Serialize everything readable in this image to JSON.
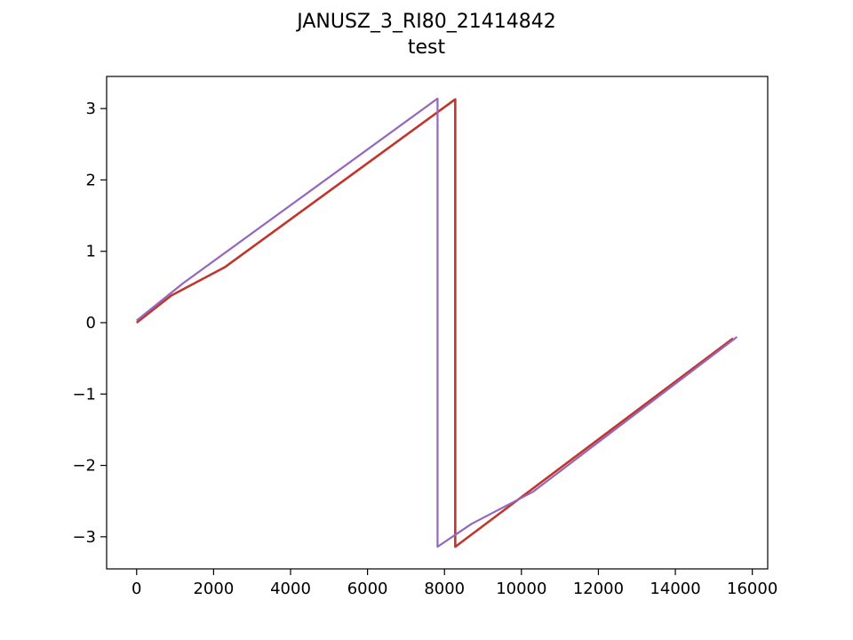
{
  "chart_data": {
    "type": "line",
    "title": "JANUSZ_3_RI80_21414842",
    "subtitle": "test",
    "xlabel": "",
    "ylabel": "",
    "xlim": [
      -780,
      16400
    ],
    "ylim": [
      -3.45,
      3.45
    ],
    "grid": false,
    "x_ticks": [
      0,
      2000,
      4000,
      6000,
      8000,
      10000,
      12000,
      14000,
      16000
    ],
    "x_tick_labels": [
      "0",
      "2000",
      "4000",
      "6000",
      "8000",
      "10000",
      "12000",
      "14000",
      "16000"
    ],
    "y_ticks": [
      3,
      2,
      1,
      0,
      -1,
      -2,
      -3
    ],
    "y_tick_labels": [
      "3",
      "2",
      "1",
      "0",
      "−1",
      "−2",
      "−3"
    ],
    "series": [
      {
        "color": "#c0362c",
        "points": [
          [
            0,
            0.0
          ],
          [
            900,
            0.38
          ],
          [
            2300,
            0.78
          ],
          [
            8280,
            3.13
          ],
          [
            8280,
            -3.14
          ],
          [
            15500,
            -0.22
          ]
        ]
      },
      {
        "color": "#9467bd",
        "points": [
          [
            0,
            0.03
          ],
          [
            1200,
            0.55
          ],
          [
            7820,
            3.14
          ],
          [
            7820,
            -3.14
          ],
          [
            8700,
            -2.82
          ],
          [
            10300,
            -2.37
          ],
          [
            15600,
            -0.2
          ]
        ]
      }
    ]
  }
}
